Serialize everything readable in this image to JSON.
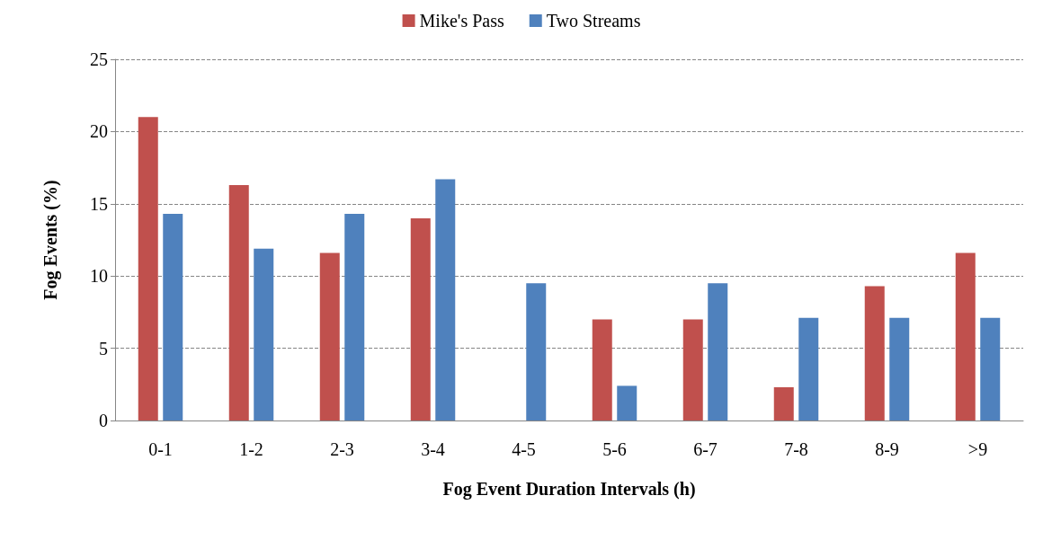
{
  "chart_data": {
    "type": "bar",
    "xlabel": "Fog Event Duration Intervals (h)",
    "ylabel": "Fog Events (%)",
    "categories": [
      "0-1",
      "1-2",
      "2-3",
      "3-4",
      "4-5",
      "5-6",
      "6-7",
      "7-8",
      "8-9",
      ">9"
    ],
    "series": [
      {
        "name": "Mike's Pass",
        "color": "#c0504d",
        "values": [
          21.0,
          16.3,
          11.6,
          14.0,
          0,
          7.0,
          7.0,
          2.3,
          9.3,
          11.6
        ]
      },
      {
        "name": "Two Streams",
        "color": "#4f81bd",
        "values": [
          14.3,
          11.9,
          14.3,
          16.7,
          9.5,
          2.4,
          9.5,
          7.1,
          7.1,
          7.1
        ]
      }
    ],
    "ylim": [
      0,
      25
    ],
    "yticks": [
      0,
      5,
      10,
      15,
      20,
      25
    ],
    "grid": "y",
    "legend": "top"
  }
}
